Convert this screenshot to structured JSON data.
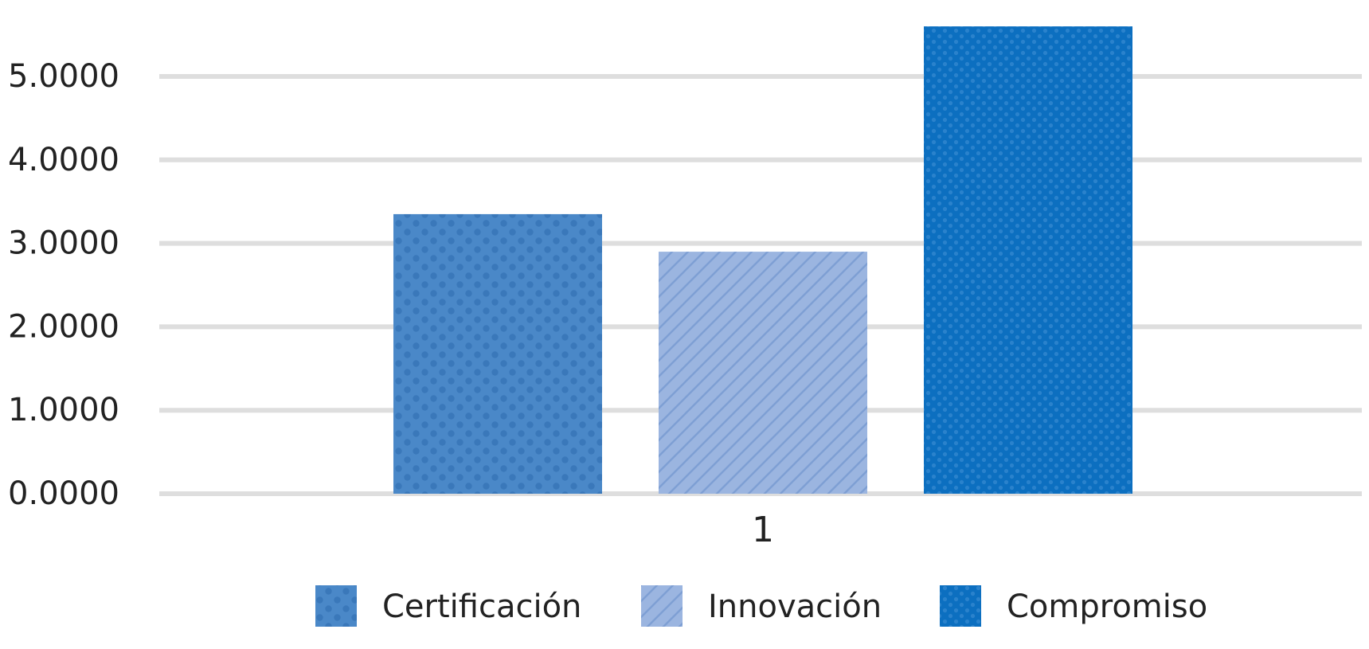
{
  "chart_data": {
    "type": "bar",
    "title": "",
    "xlabel": "",
    "ylabel": "",
    "categories": [
      "1"
    ],
    "ylim": [
      0,
      5.6
    ],
    "yticks": [
      "0.0000",
      "1.0000",
      "2.0000",
      "3.0000",
      "4.0000",
      "5.0000"
    ],
    "ytick_values": [
      0,
      1,
      2,
      3,
      4,
      5
    ],
    "grid": true,
    "legend_position": "bottom",
    "series": [
      {
        "name": "Certificación",
        "values": [
          3.35
        ],
        "color": "#4a88c8",
        "pattern": "dots"
      },
      {
        "name": "Innovación",
        "values": [
          2.9
        ],
        "color": "#9bb5e0",
        "pattern": "diagonal-stripes"
      },
      {
        "name": "Compromiso",
        "values": [
          5.6
        ],
        "color": "#0c6fc0",
        "pattern": "fine-dots"
      }
    ]
  }
}
